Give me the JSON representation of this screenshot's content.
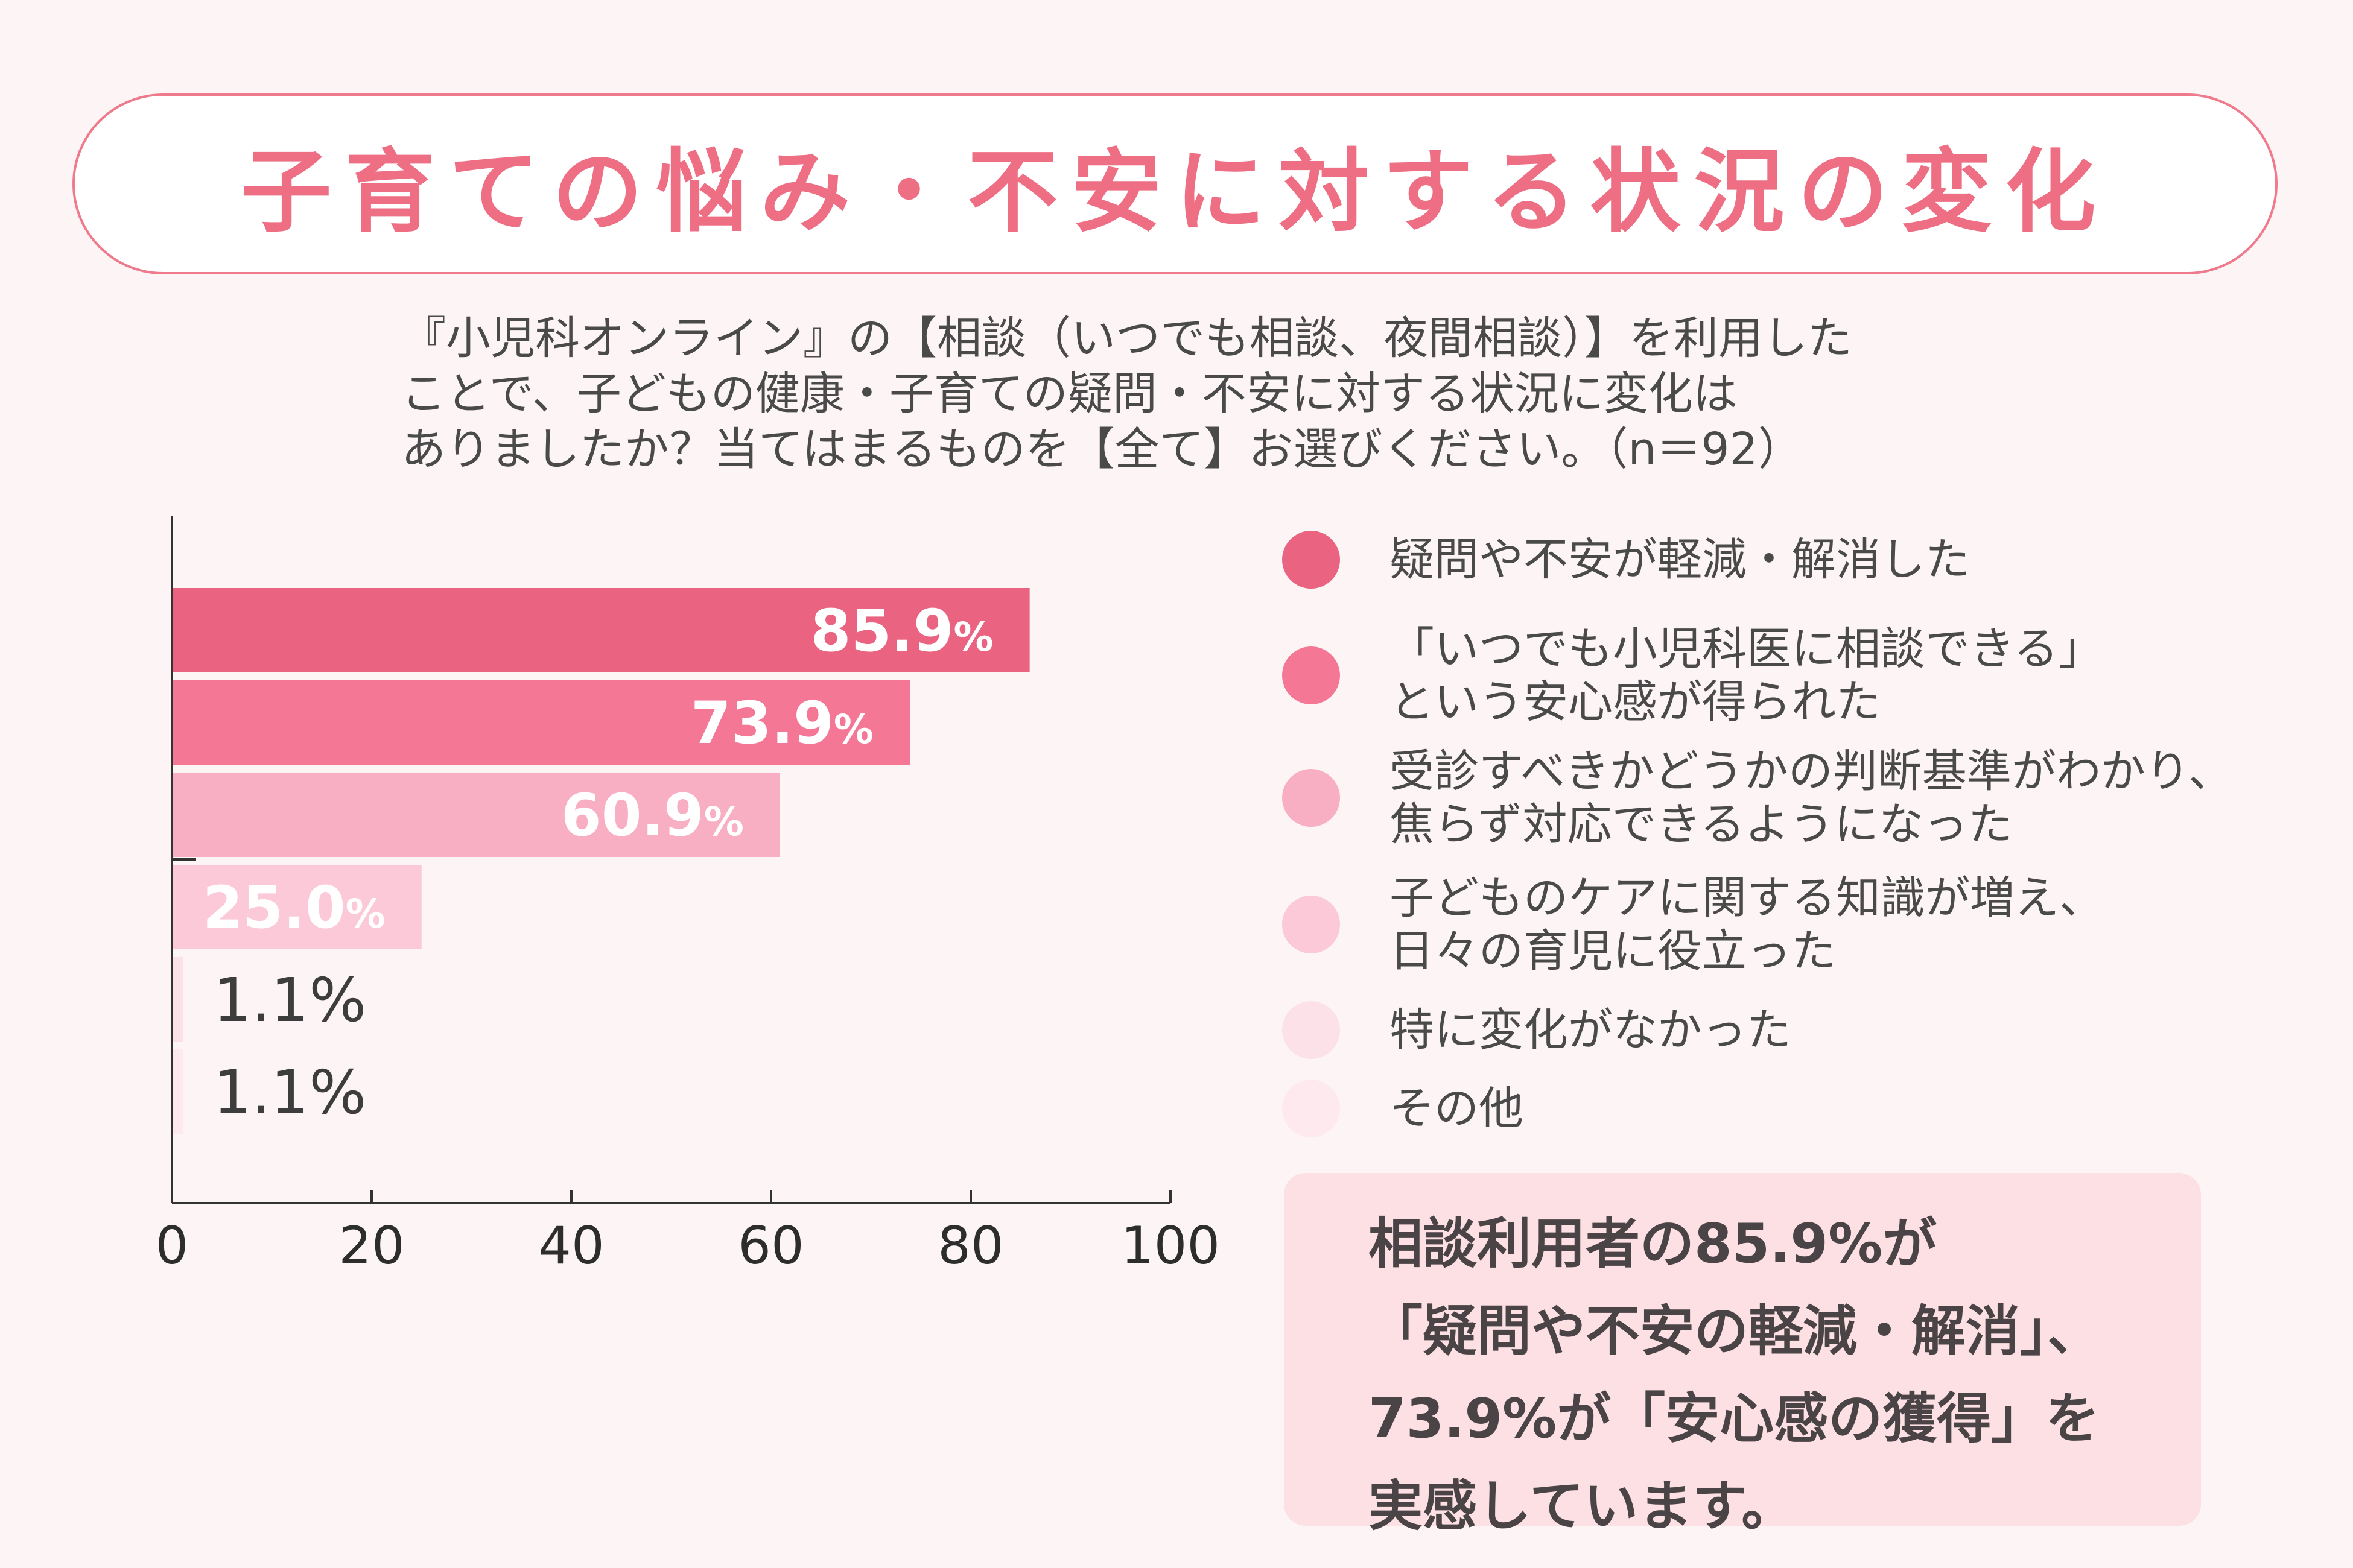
{
  "title": "子育ての悩み・不安に対する状況の変化",
  "question": {
    "line1": "『小児科オンライン』の【相談（いつでも相談、夜間相談）】を利用した",
    "line2": "ことで、子どもの健康・子育ての疑問・不安に対する状況に変化は",
    "line3": "ありましたか？当てはまるものを【全て】お選びください。（n＝92）"
  },
  "chart_data": {
    "type": "bar",
    "orientation": "horizontal",
    "categories": [
      "疑問や不安が軽減・解消した",
      "「いつでも小児科医に相談できる」という安心感が得られた",
      "受診すべきかどうかの判断基準がわかり、焦らず対応できるようになった",
      "子どものケアに関する知識が増え、日々の育児に役立った",
      "特に変化がなかった",
      "その他"
    ],
    "values": [
      85.9,
      73.9,
      60.9,
      25.0,
      1.1,
      1.1
    ],
    "data_labels": [
      "85.9",
      "73.9",
      "60.9",
      "25.0",
      "1.1",
      "1.1"
    ],
    "unit": "%",
    "colors": [
      "#ea6482",
      "#f47896",
      "#f8afc3",
      "#fbc9d7",
      "#fde1e8",
      "#fde9ee"
    ],
    "xlim": [
      0,
      100
    ],
    "xticks": [
      "0",
      "20",
      "40",
      "60",
      "80",
      "100"
    ],
    "xlabel": "",
    "ylabel": ""
  },
  "legend": [
    {
      "lines": [
        "疑問や不安が軽減・解消した"
      ],
      "color": "#ea6482"
    },
    {
      "lines": [
        "「いつでも小児科医に相談できる」",
        "という安心感が得られた"
      ],
      "color": "#f47896"
    },
    {
      "lines": [
        "受診すべきかどうかの判断基準がわかり、",
        "焦らず対応できるようになった"
      ],
      "color": "#f8afc3"
    },
    {
      "lines": [
        "子どものケアに関する知識が増え、",
        "日々の育児に役立った"
      ],
      "color": "#fbc9d7"
    },
    {
      "lines": [
        "特に変化がなかった"
      ],
      "color": "#fde1e8"
    },
    {
      "lines": [
        "その他"
      ],
      "color": "#fde9ee"
    }
  ],
  "callout": {
    "line1": "相談利用者の85.9%が",
    "line2": "「疑問や不安の軽減・解消」、",
    "line3": "73.9%が「安心感の獲得」を",
    "line4": "実感しています。"
  }
}
